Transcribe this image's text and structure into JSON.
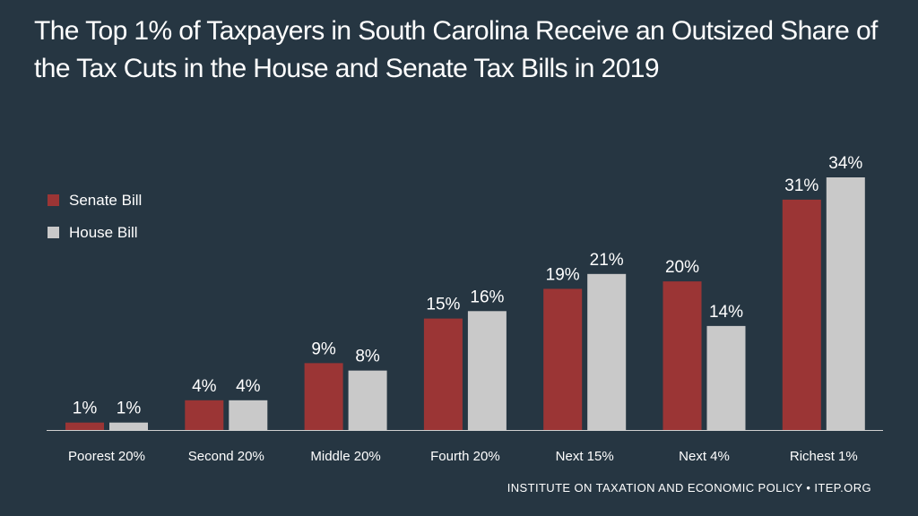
{
  "title": "The Top 1% of Taxpayers in South Carolina Receive an Outsized Share of the Tax Cuts in the House and Senate Tax Bills in 2019",
  "source": "INSTITUTE ON TAXATION AND ECONOMIC POLICY • ITEP.ORG",
  "colors": {
    "background": "#263642",
    "senate": "#9b3535",
    "house": "#c9c9c9",
    "text": "#ffffff"
  },
  "chart_data": {
    "type": "bar",
    "title": "The Top 1% of Taxpayers in South Carolina Receive an Outsized Share of the Tax Cuts in the House and Senate Tax Bills in 2019",
    "xlabel": "",
    "ylabel": "",
    "ylim": [
      0,
      34
    ],
    "grid": false,
    "legend_position": "top-left",
    "categories": [
      "Poorest 20%",
      "Second 20%",
      "Middle 20%",
      "Fourth 20%",
      "Next 15%",
      "Next 4%",
      "Richest 1%"
    ],
    "series": [
      {
        "name": "Senate Bill",
        "color": "#9b3535",
        "values": [
          1,
          4,
          9,
          15,
          19,
          20,
          31
        ],
        "labels": [
          "1%",
          "4%",
          "9%",
          "15%",
          "19%",
          "20%",
          "31%"
        ]
      },
      {
        "name": "House Bill",
        "color": "#c9c9c9",
        "values": [
          1,
          4,
          8,
          16,
          21,
          14,
          34
        ],
        "labels": [
          "1%",
          "4%",
          "8%",
          "16%",
          "21%",
          "14%",
          "34%"
        ]
      }
    ]
  }
}
